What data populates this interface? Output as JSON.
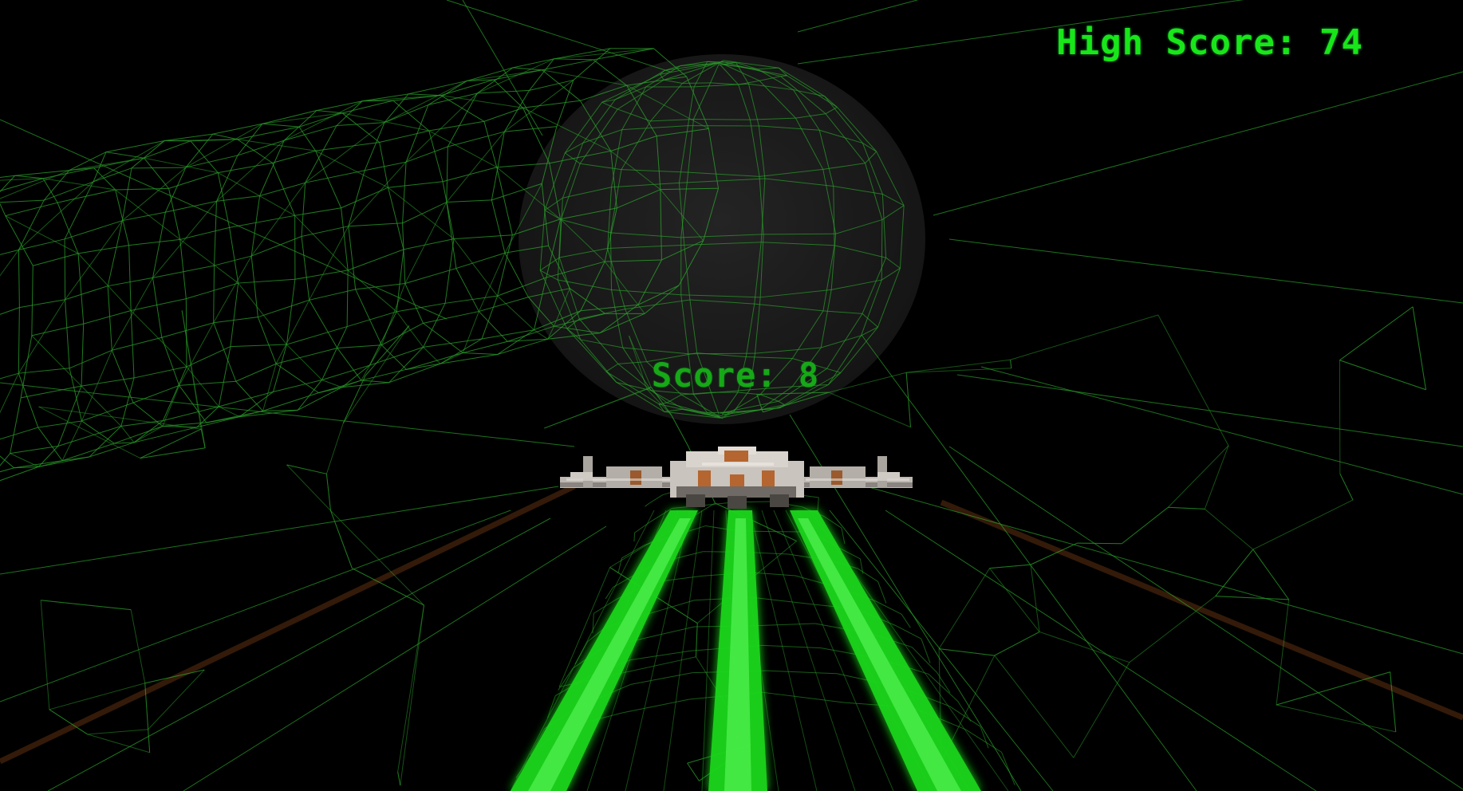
{
  "hud": {
    "high_score_label": "High Score:",
    "high_score_value": "74",
    "score_label": "Score:",
    "score_value": "8"
  },
  "colors": {
    "background": "#000000",
    "wireframe": "#2fb52f",
    "hud_high_score": "#19e619",
    "hud_score": "#17a817",
    "laser": "#22ff22",
    "ship_hull": "#c9c4bd",
    "ship_accent": "#b5652f",
    "guide_line": "#3a1d0a",
    "sphere_fill": "#1a1a1a"
  },
  "icons": {
    "player_ship": "spaceship-icon",
    "laser_beam": "laser-beam-icon"
  }
}
